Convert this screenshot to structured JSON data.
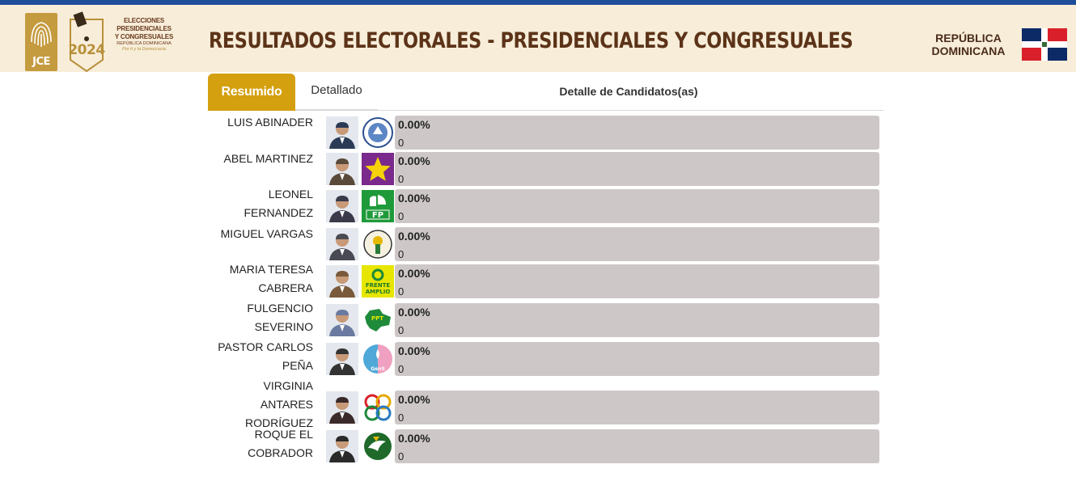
{
  "header": {
    "logo_text": "JCE",
    "badge_year": "2024",
    "elections_line1": "ELECCIONES",
    "elections_line2": "PRESIDENCIALES",
    "elections_line3": "Y CONGRESUALES",
    "elections_line4": "REPÚBLICA DOMINICANA",
    "elections_slogan": "Por ti y la Democracia",
    "title": "RESULTADOS ELECTORALES - PRESIDENCIALES Y CONGRESUALES",
    "country_line1": "REPÚBLICA",
    "country_line2": "DOMINICANA"
  },
  "colors": {
    "topbar": "#1f4e9a",
    "header_bg": "#f7edd9",
    "accent_gold": "#d4a010",
    "title_brown": "#5c3318",
    "bar_bg": "#cdc8c7"
  },
  "tabs": {
    "resumido": "Resumido",
    "detallado": "Detallado",
    "active": "Resumido",
    "section_title": "Detalle de Candidatos(as)"
  },
  "candidates": [
    {
      "name_lines": [
        "LUIS ABINADER"
      ],
      "party_icon": "prm-logo-icon",
      "percent": "0.00%",
      "votes": "0",
      "progress": 0
    },
    {
      "name_lines": [
        "ABEL MARTINEZ"
      ],
      "party_icon": "pld-star-icon",
      "percent": "0.00%",
      "votes": "0",
      "progress": 0
    },
    {
      "name_lines": [
        "LEONEL",
        "FERNANDEZ"
      ],
      "party_icon": "fp-logo-icon",
      "percent": "0.00%",
      "votes": "0",
      "progress": 0
    },
    {
      "name_lines": [
        "MIGUEL VARGAS"
      ],
      "party_icon": "prd-seal-icon",
      "percent": "0.00%",
      "votes": "0",
      "progress": 0
    },
    {
      "name_lines": [
        "MARIA TERESA",
        "CABRERA"
      ],
      "party_icon": "frente-amplio-icon",
      "party_text": [
        "FRENTE",
        "AMPLIO"
      ],
      "percent": "0.00%",
      "votes": "0",
      "progress": 0
    },
    {
      "name_lines": [
        "FULGENCIO",
        "SEVERINO"
      ],
      "party_icon": "ppt-map-icon",
      "party_text": [
        "PPT"
      ],
      "percent": "0.00%",
      "votes": "0",
      "progress": 0
    },
    {
      "name_lines": [
        "PASTOR CARLOS",
        "PEÑA"
      ],
      "party_icon": "generacion-icon",
      "party_text": [
        "GenS"
      ],
      "percent": "0.00%",
      "votes": "0",
      "progress": 0
    },
    {
      "name_lines": [
        "VIRGINIA",
        "ANTARES",
        "RODRÍGUEZ"
      ],
      "party_icon": "opcion-rings-icon",
      "percent": "0.00%",
      "votes": "0",
      "progress": 0
    },
    {
      "name_lines": [
        "ROQUE EL",
        "COBRADOR"
      ],
      "party_icon": "dove-seal-icon",
      "percent": "0.00%",
      "votes": "0",
      "progress": 0
    }
  ]
}
